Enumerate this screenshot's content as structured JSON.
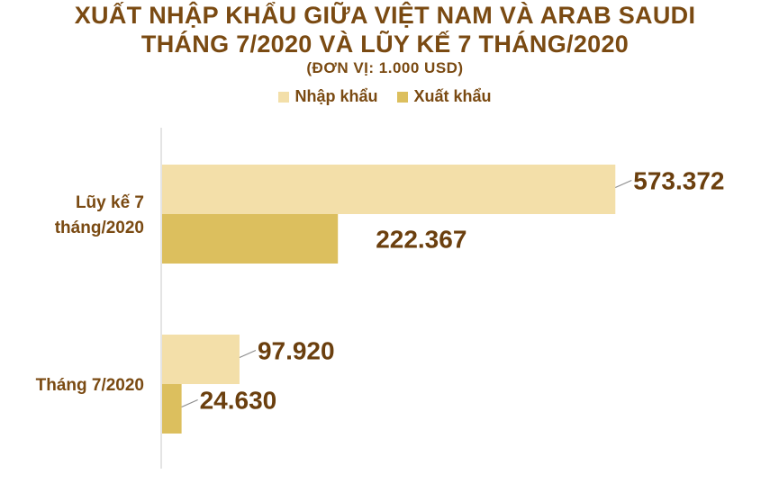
{
  "header": {
    "title_line1": "XUẤT NHẬP KHẨU GIỮA VIỆT NAM VÀ ARAB SAUDI",
    "title_line2": "THÁNG 7/2020 VÀ LŨY KẾ 7 THÁNG/2020",
    "unit": "(ĐƠN VỊ: 1.000 USD)"
  },
  "colors": {
    "import": "#f3dfa9",
    "export": "#dcbf5e",
    "axis": "#c8c8c8",
    "leader": "#8c8c8c"
  },
  "chart_data": {
    "type": "bar",
    "orientation": "horizontal",
    "title": "XUẤT NHẬP KHẨU GIỮA VIỆT NAM VÀ ARAB SAUDI THÁNG 7/2020 VÀ LŨY KẾ 7 THÁNG/2020",
    "subtitle": "(ĐƠN VỊ: 1.000 USD)",
    "categories": [
      [
        "Lũy kế 7",
        "tháng/2020"
      ],
      [
        "Tháng 7/2020"
      ]
    ],
    "series": [
      {
        "name": "Nhập khẩu",
        "values": [
          573372,
          97920
        ],
        "labels": [
          "573.372",
          "97.920"
        ]
      },
      {
        "name": "Xuất khẩu",
        "values": [
          222367,
          24630
        ],
        "labels": [
          "222.367",
          "24.630"
        ]
      }
    ],
    "xlim": [
      0,
      630000
    ],
    "legend": "top-center",
    "grid": false
  }
}
